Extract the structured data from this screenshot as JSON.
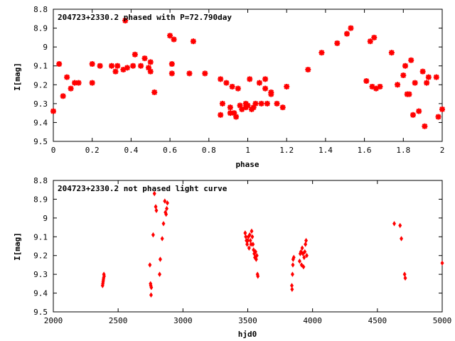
{
  "chart_data": [
    {
      "type": "scatter",
      "title": "204723+2330.2 phased with P=72.790day",
      "xlabel": "phase",
      "ylabel": "I[mag]",
      "xlim": [
        0,
        2
      ],
      "ylim": [
        8.8,
        9.5
      ],
      "y_inverted": true,
      "xticks": [
        0,
        0.2,
        0.4,
        0.6,
        0.8,
        1,
        1.2,
        1.4,
        1.6,
        1.8,
        2
      ],
      "xtick_labels": [
        "0",
        "0.2",
        "0.4",
        "0.6",
        "0.8",
        "1",
        "1.2",
        "1.4",
        "1.6",
        "1.8",
        "2"
      ],
      "yticks": [
        8.8,
        8.9,
        9.0,
        9.1,
        9.2,
        9.3,
        9.4,
        9.5
      ],
      "ytick_labels": [
        "8.8",
        "8.9",
        "9",
        "9.1",
        "9.2",
        "9.3",
        "9.4",
        "9.5"
      ],
      "grid": false,
      "marker_color": "#ff0000",
      "marker": "star",
      "series": [
        {
          "points": [
            [
              0.0,
              9.34
            ],
            [
              0.03,
              9.09
            ],
            [
              0.05,
              9.26
            ],
            [
              0.07,
              9.16
            ],
            [
              0.09,
              9.22
            ],
            [
              0.11,
              9.19
            ],
            [
              0.13,
              9.19
            ],
            [
              0.2,
              9.09
            ],
            [
              0.2,
              9.19
            ],
            [
              0.24,
              9.1
            ],
            [
              0.3,
              9.1
            ],
            [
              0.32,
              9.13
            ],
            [
              0.33,
              9.1
            ],
            [
              0.36,
              9.12
            ],
            [
              0.37,
              8.86
            ],
            [
              0.38,
              9.11
            ],
            [
              0.41,
              9.1
            ],
            [
              0.42,
              9.04
            ],
            [
              0.45,
              9.1
            ],
            [
              0.47,
              9.06
            ],
            [
              0.49,
              9.11
            ],
            [
              0.5,
              9.08
            ],
            [
              0.5,
              9.13
            ],
            [
              0.52,
              9.24
            ],
            [
              0.6,
              8.94
            ],
            [
              0.61,
              9.09
            ],
            [
              0.61,
              9.14
            ],
            [
              0.62,
              8.96
            ],
            [
              0.7,
              9.14
            ],
            [
              0.72,
              8.97
            ],
            [
              0.78,
              9.14
            ],
            [
              0.86,
              9.17
            ],
            [
              0.86,
              9.36
            ],
            [
              0.87,
              9.3
            ],
            [
              0.89,
              9.19
            ],
            [
              0.91,
              9.32
            ],
            [
              0.91,
              9.35
            ],
            [
              0.92,
              9.21
            ],
            [
              0.93,
              9.35
            ],
            [
              0.94,
              9.37
            ],
            [
              0.95,
              9.22
            ],
            [
              0.96,
              9.31
            ],
            [
              0.97,
              9.33
            ],
            [
              0.99,
              9.32
            ],
            [
              0.99,
              9.3
            ],
            [
              1.0,
              9.31
            ],
            [
              1.01,
              9.17
            ],
            [
              1.02,
              9.33
            ],
            [
              1.03,
              9.32
            ],
            [
              1.04,
              9.3
            ],
            [
              1.06,
              9.19
            ],
            [
              1.07,
              9.3
            ],
            [
              1.09,
              9.22
            ],
            [
              1.09,
              9.17
            ],
            [
              1.1,
              9.3
            ],
            [
              1.12,
              9.24
            ],
            [
              1.12,
              9.25
            ],
            [
              1.15,
              9.3
            ],
            [
              1.18,
              9.32
            ],
            [
              1.2,
              9.21
            ],
            [
              1.31,
              9.12
            ],
            [
              1.38,
              9.03
            ],
            [
              1.46,
              8.98
            ],
            [
              1.51,
              8.93
            ],
            [
              1.53,
              8.9
            ],
            [
              1.61,
              9.18
            ],
            [
              1.63,
              8.97
            ],
            [
              1.64,
              9.21
            ],
            [
              1.65,
              8.95
            ],
            [
              1.66,
              9.22
            ],
            [
              1.68,
              9.21
            ],
            [
              1.74,
              9.03
            ],
            [
              1.77,
              9.2
            ],
            [
              1.8,
              9.15
            ],
            [
              1.81,
              9.1
            ],
            [
              1.82,
              9.25
            ],
            [
              1.83,
              9.25
            ],
            [
              1.84,
              9.07
            ],
            [
              1.85,
              9.36
            ],
            [
              1.86,
              9.19
            ],
            [
              1.88,
              9.34
            ],
            [
              1.9,
              9.13
            ],
            [
              1.91,
              9.42
            ],
            [
              1.92,
              9.19
            ],
            [
              1.93,
              9.16
            ],
            [
              1.97,
              9.16
            ],
            [
              1.98,
              9.37
            ],
            [
              2.0,
              9.33
            ]
          ]
        }
      ]
    },
    {
      "type": "scatter",
      "title": "204723+2330.2 not phased light curve",
      "xlabel": "hjd0",
      "ylabel": "I[mag]",
      "xlim": [
        2000,
        5000
      ],
      "ylim": [
        8.8,
        9.5
      ],
      "y_inverted": true,
      "xticks": [
        2000,
        2500,
        3000,
        3500,
        4000,
        4500,
        5000
      ],
      "xtick_labels": [
        "2000",
        "2500",
        "3000",
        "3500",
        "4000",
        "4500",
        "5000"
      ],
      "yticks": [
        8.8,
        8.9,
        9.0,
        9.1,
        9.2,
        9.3,
        9.4,
        9.5
      ],
      "ytick_labels": [
        "8.8",
        "8.9",
        "9",
        "9.1",
        "9.2",
        "9.3",
        "9.4",
        "9.5"
      ],
      "grid": false,
      "marker_color": "#ff0000",
      "marker": "diamond",
      "series": [
        {
          "points": [
            [
              2380,
              9.36
            ],
            [
              2382,
              9.35
            ],
            [
              2384,
              9.34
            ],
            [
              2386,
              9.33
            ],
            [
              2388,
              9.32
            ],
            [
              2390,
              9.3
            ],
            [
              2392,
              9.31
            ],
            [
              2745,
              9.25
            ],
            [
              2750,
              9.35
            ],
            [
              2752,
              9.36
            ],
            [
              2754,
              9.41
            ],
            [
              2756,
              9.37
            ],
            [
              2770,
              9.09
            ],
            [
              2780,
              8.87
            ],
            [
              2790,
              8.94
            ],
            [
              2795,
              8.96
            ],
            [
              2820,
              9.3
            ],
            [
              2825,
              9.22
            ],
            [
              2840,
              9.11
            ],
            [
              2850,
              9.03
            ],
            [
              2860,
              8.91
            ],
            [
              2865,
              8.97
            ],
            [
              2870,
              8.98
            ],
            [
              2875,
              8.95
            ],
            [
              2880,
              8.92
            ],
            [
              3480,
              9.08
            ],
            [
              3485,
              9.1
            ],
            [
              3490,
              9.12
            ],
            [
              3495,
              9.14
            ],
            [
              3500,
              9.12
            ],
            [
              3505,
              9.1
            ],
            [
              3510,
              9.16
            ],
            [
              3515,
              9.09
            ],
            [
              3520,
              9.12
            ],
            [
              3525,
              9.14
            ],
            [
              3530,
              9.07
            ],
            [
              3535,
              9.1
            ],
            [
              3540,
              9.14
            ],
            [
              3545,
              9.17
            ],
            [
              3550,
              9.19
            ],
            [
              3555,
              9.21
            ],
            [
              3560,
              9.18
            ],
            [
              3565,
              9.22
            ],
            [
              3570,
              9.2
            ],
            [
              3575,
              9.3
            ],
            [
              3578,
              9.31
            ],
            [
              3840,
              9.36
            ],
            [
              3842,
              9.38
            ],
            [
              3845,
              9.3
            ],
            [
              3848,
              9.25
            ],
            [
              3850,
              9.22
            ],
            [
              3855,
              9.21
            ],
            [
              3900,
              9.23
            ],
            [
              3905,
              9.19
            ],
            [
              3910,
              9.18
            ],
            [
              3915,
              9.25
            ],
            [
              3920,
              9.16
            ],
            [
              3925,
              9.19
            ],
            [
              3930,
              9.26
            ],
            [
              3935,
              9.21
            ],
            [
              3940,
              9.18
            ],
            [
              3945,
              9.14
            ],
            [
              3950,
              9.12
            ],
            [
              3955,
              9.2
            ],
            [
              4630,
              9.03
            ],
            [
              4675,
              9.04
            ],
            [
              4685,
              9.11
            ],
            [
              4710,
              9.3
            ],
            [
              4715,
              9.32
            ],
            [
              5000,
              9.24
            ]
          ]
        }
      ]
    }
  ]
}
